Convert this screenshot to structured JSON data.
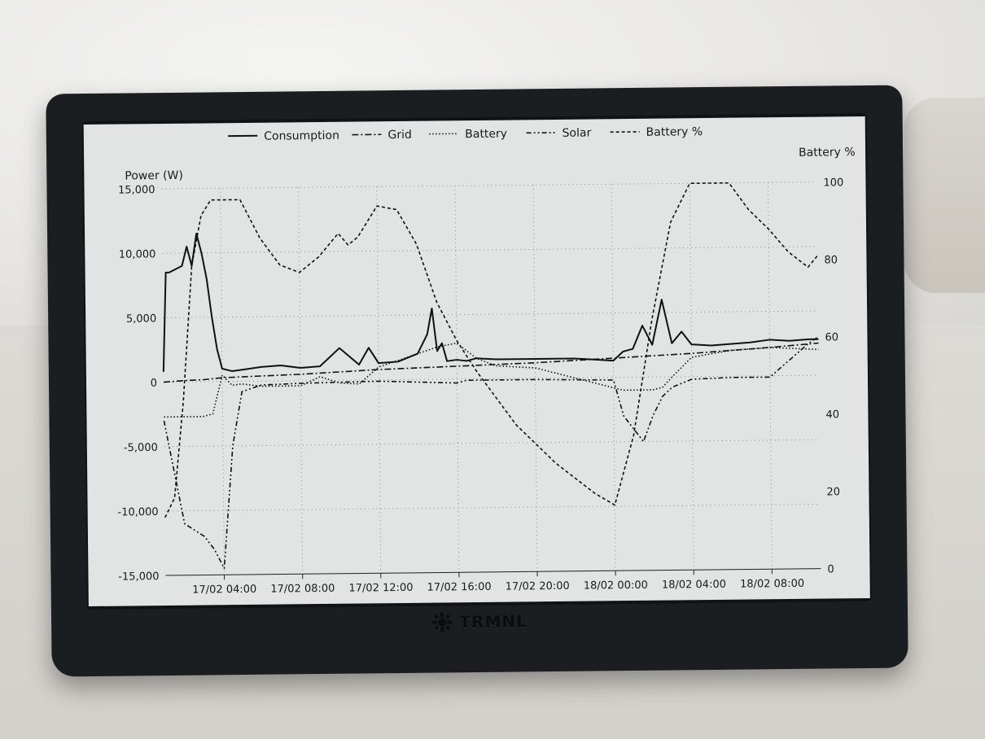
{
  "device": {
    "brand": "TRMNL",
    "icon": "trmnl-logo-icon"
  },
  "chart_data": {
    "type": "line",
    "title": "",
    "ylabel": "Power (W)",
    "y2label": "Battery %",
    "xlabel": "",
    "ylim": [
      -15000,
      15000
    ],
    "y2lim": [
      0,
      100
    ],
    "xlim": [
      "17/02 01:00",
      "18/02 10:30"
    ],
    "x_ticks": [
      "17/02 04:00",
      "17/02 08:00",
      "17/02 12:00",
      "17/02 16:00",
      "17/02 20:00",
      "18/02 00:00",
      "18/02 04:00",
      "18/02 08:00"
    ],
    "y_ticks": [
      "15,000",
      "10,000",
      "5,000",
      "0",
      "-5,000",
      "-10,000",
      "-15,000"
    ],
    "y2_ticks": [
      "100",
      "80",
      "60",
      "40",
      "20",
      "0"
    ],
    "grid": true,
    "legend_position": "top",
    "series": [
      {
        "name": "Consumption",
        "style": "solid",
        "x": [
          "17/02 01:00",
          "17/02 01:10",
          "17/02 01:20",
          "17/02 02:00",
          "17/02 02:15",
          "17/02 02:30",
          "17/02 02:45",
          "17/02 03:00",
          "17/02 03:15",
          "17/02 03:30",
          "17/02 03:45",
          "17/02 04:00",
          "17/02 04:30",
          "17/02 05:00",
          "17/02 06:00",
          "17/02 07:00",
          "17/02 08:00",
          "17/02 09:00",
          "17/02 10:00",
          "17/02 11:00",
          "17/02 11:30",
          "17/02 12:00",
          "17/02 13:00",
          "17/02 14:00",
          "17/02 14:30",
          "17/02 14:45",
          "17/02 15:00",
          "17/02 15:15",
          "17/02 15:30",
          "17/02 16:00",
          "17/02 16:30",
          "17/02 17:00",
          "17/02 18:00",
          "17/02 19:00",
          "17/02 20:00",
          "17/02 21:00",
          "17/02 22:00",
          "17/02 23:00",
          "18/02 00:00",
          "18/02 00:30",
          "18/02 01:00",
          "18/02 01:30",
          "18/02 02:00",
          "18/02 02:30",
          "18/02 03:00",
          "18/02 03:30",
          "18/02 04:00",
          "18/02 05:00",
          "18/02 06:00",
          "18/02 07:00",
          "18/02 08:00",
          "18/02 09:00",
          "18/02 10:00",
          "18/02 10:30"
        ],
        "values": [
          800,
          8500,
          8500,
          9000,
          10500,
          9000,
          11500,
          10000,
          8000,
          5000,
          2500,
          1000,
          800,
          900,
          1100,
          1200,
          1000,
          1100,
          2500,
          1200,
          2500,
          1300,
          1400,
          2000,
          3500,
          5500,
          2200,
          2800,
          1400,
          1500,
          1400,
          1600,
          1500,
          1500,
          1500,
          1500,
          1500,
          1400,
          1300,
          2000,
          2200,
          4000,
          2500,
          6000,
          2600,
          3500,
          2500,
          2400,
          2500,
          2600,
          2800,
          2700,
          2800,
          2800
        ]
      },
      {
        "name": "Grid",
        "style": "dashdot",
        "x": [
          "17/02 01:00",
          "17/02 02:00",
          "17/02 03:00",
          "17/02 04:00",
          "17/02 08:00",
          "17/02 12:00",
          "17/02 16:00",
          "17/02 20:00",
          "18/02 00:00",
          "18/02 04:00",
          "18/02 08:00",
          "18/02 10:30"
        ],
        "values": [
          0,
          100,
          150,
          300,
          500,
          800,
          1000,
          1200,
          1500,
          1800,
          2200,
          2500
        ]
      },
      {
        "name": "Battery",
        "style": "dotted",
        "x": [
          "17/02 01:00",
          "17/02 02:00",
          "17/02 03:00",
          "17/02 03:30",
          "17/02 04:00",
          "17/02 04:30",
          "17/02 05:00",
          "17/02 06:00",
          "17/02 08:00",
          "17/02 09:00",
          "17/02 10:00",
          "17/02 11:00",
          "17/02 12:00",
          "17/02 13:00",
          "17/02 14:00",
          "17/02 15:00",
          "17/02 16:00",
          "17/02 17:00",
          "17/02 18:00",
          "17/02 20:00",
          "18/02 00:00",
          "18/02 00:30",
          "18/02 01:00",
          "18/02 01:30",
          "18/02 02:00",
          "18/02 02:30",
          "18/02 03:00",
          "18/02 04:00",
          "18/02 06:00",
          "18/02 08:00",
          "18/02 10:30"
        ],
        "values": [
          -2700,
          -2700,
          -2700,
          -2500,
          500,
          -300,
          -200,
          -400,
          -400,
          300,
          -200,
          -300,
          1000,
          1500,
          2000,
          2500,
          2800,
          1600,
          1000,
          800,
          -800,
          -1000,
          -1000,
          -1000,
          -1000,
          -800,
          0,
          1500,
          2000,
          2200,
          2000
        ]
      },
      {
        "name": "Solar",
        "style": "dashdotdot",
        "x": [
          "17/02 01:00",
          "17/02 02:00",
          "17/02 02:30",
          "17/02 03:00",
          "17/02 03:30",
          "17/02 04:00",
          "17/02 04:30",
          "17/02 05:00",
          "17/02 06:00",
          "17/02 08:00",
          "17/02 12:00",
          "17/02 16:00",
          "17/02 16:30",
          "17/02 18:00",
          "17/02 20:00",
          "18/02 00:00",
          "18/02 00:30",
          "18/02 01:00",
          "18/02 01:30",
          "18/02 02:00",
          "18/02 02:30",
          "18/02 03:00",
          "18/02 04:00",
          "18/02 06:00",
          "18/02 08:00",
          "18/02 10:00",
          "18/02 10:30"
        ],
        "values": [
          -3000,
          -11000,
          -11500,
          -12000,
          -13000,
          -14500,
          -5000,
          -800,
          -300,
          -200,
          -100,
          -300,
          -100,
          -100,
          -100,
          -200,
          -3000,
          -4000,
          -5000,
          -3000,
          -1500,
          -800,
          -200,
          -100,
          -100,
          2500,
          3000
        ]
      },
      {
        "name": "Battery %",
        "style": "dashed",
        "axis": "right",
        "x": [
          "17/02 01:00",
          "17/02 01:30",
          "17/02 02:00",
          "17/02 02:30",
          "17/02 03:00",
          "17/02 03:30",
          "17/02 04:00",
          "17/02 05:00",
          "17/02 06:00",
          "17/02 07:00",
          "17/02 08:00",
          "17/02 09:00",
          "17/02 10:00",
          "17/02 10:30",
          "17/02 11:00",
          "17/02 12:00",
          "17/02 13:00",
          "17/02 14:00",
          "17/02 15:00",
          "17/02 16:00",
          "17/02 17:00",
          "17/02 18:00",
          "17/02 19:00",
          "17/02 20:00",
          "17/02 21:00",
          "17/02 22:00",
          "17/02 23:00",
          "18/02 00:00",
          "18/02 01:00",
          "18/02 02:00",
          "18/02 03:00",
          "18/02 04:00",
          "18/02 05:00",
          "18/02 06:00",
          "18/02 07:00",
          "18/02 08:00",
          "18/02 09:00",
          "18/02 10:00",
          "18/02 10:30"
        ],
        "values": [
          15,
          20,
          45,
          80,
          93,
          97,
          97,
          97,
          87,
          80,
          78,
          82,
          88,
          85,
          87,
          95,
          94,
          85,
          70,
          60,
          52,
          45,
          38,
          33,
          28,
          24,
          20,
          17,
          35,
          65,
          90,
          100,
          100,
          100,
          93,
          88,
          82,
          78,
          81
        ]
      }
    ]
  }
}
